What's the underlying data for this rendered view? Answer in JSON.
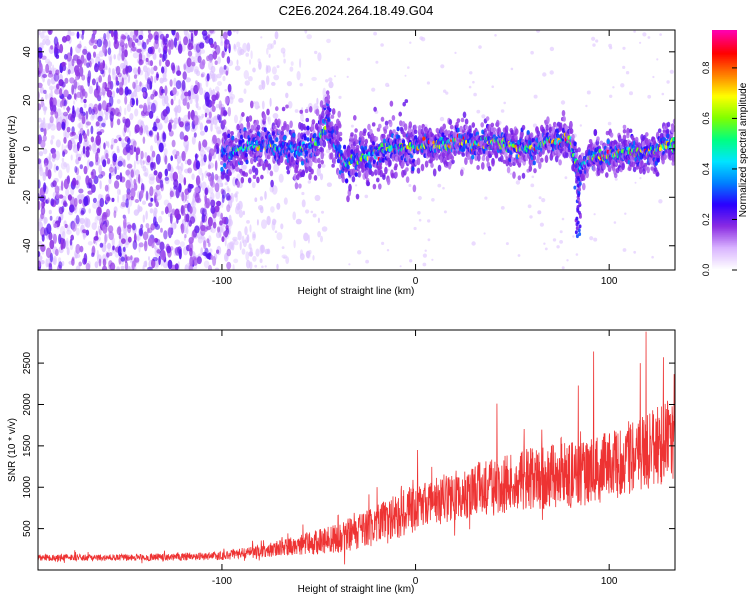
{
  "title": "C2E6.2024.264.18.49.G04",
  "chart_data": [
    {
      "type": "heatmap",
      "title": "C2E6.2024.264.18.49.G04",
      "xlabel": "Height of straight line (km)",
      "ylabel": "Frequency (Hz)",
      "xlim": [
        -195,
        134
      ],
      "ylim": [
        -50,
        49
      ],
      "xticks": [
        -100,
        0,
        100
      ],
      "xtick_labels": [
        "-100",
        "0",
        "100"
      ],
      "yticks": [
        -40,
        -20,
        0,
        20,
        40
      ],
      "ytick_labels": [
        "-40",
        "-20",
        "0",
        "20",
        "40"
      ],
      "colorbar": {
        "label": "Normalized spectral amplitude",
        "range": [
          0,
          0.95
        ],
        "ticks": [
          0.0,
          0.2,
          0.4,
          0.6,
          0.8
        ],
        "tick_labels": [
          "0.0",
          "0.2",
          "0.4",
          "0.6",
          "0.8"
        ],
        "colormap": [
          "#ffffff",
          "#d9b3ff",
          "#8a2be2",
          "#2a00ff",
          "#0080ff",
          "#00e5ff",
          "#00ff80",
          "#80ff00",
          "#ffff00",
          "#ff8000",
          "#ff0000",
          "#ff00aa"
        ]
      },
      "ridge": {
        "description_points_x": [
          -100,
          -90,
          -80,
          -70,
          -60,
          -50,
          -45,
          -40,
          -35,
          -30,
          -20,
          -10,
          0,
          10,
          20,
          30,
          40,
          50,
          60,
          70,
          80,
          84,
          90,
          100,
          110,
          120,
          130
        ],
        "frequency_hz": [
          -3,
          0,
          2,
          1,
          -1,
          3,
          12,
          -3,
          -6,
          -4,
          -2,
          1,
          1,
          2,
          3,
          2,
          3,
          1,
          0,
          3,
          4,
          -10,
          -2,
          -3,
          -1,
          -2,
          2
        ],
        "amplitude": [
          0.3,
          0.4,
          0.4,
          0.35,
          0.3,
          0.45,
          0.5,
          0.35,
          0.4,
          0.4,
          0.45,
          0.55,
          0.6,
          0.65,
          0.6,
          0.55,
          0.5,
          0.6,
          0.6,
          0.55,
          0.65,
          0.4,
          0.55,
          0.6,
          0.55,
          0.7,
          0.65
        ]
      },
      "noise_region_x": [
        -195,
        -100
      ],
      "grid": false
    },
    {
      "type": "line",
      "xlabel": "Height of straight line (km)",
      "ylabel": "SNR (10 * v/v)",
      "xlim": [
        -195,
        134
      ],
      "ylim": [
        0,
        2900
      ],
      "xticks": [
        -100,
        0,
        100
      ],
      "xtick_labels": [
        "-100",
        "0",
        "100"
      ],
      "yticks": [
        500,
        1000,
        1500,
        2000,
        2500
      ],
      "ytick_labels": [
        "500",
        "1000",
        "1500",
        "2000",
        "2500"
      ],
      "color": "#ee3333",
      "envelope_x": [
        -195,
        -150,
        -100,
        -80,
        -60,
        -40,
        -20,
        0,
        20,
        40,
        60,
        80,
        100,
        120,
        134
      ],
      "envelope_mean": [
        150,
        150,
        170,
        230,
        300,
        380,
        550,
        750,
        900,
        1000,
        1100,
        1150,
        1250,
        1450,
        1600
      ],
      "envelope_spread": [
        40,
        40,
        50,
        80,
        120,
        180,
        250,
        300,
        320,
        350,
        380,
        400,
        420,
        480,
        500
      ],
      "peaks": [
        {
          "x": -40,
          "y": 660
        },
        {
          "x": 1,
          "y": 1450
        },
        {
          "x": 42,
          "y": 2010
        },
        {
          "x": 84,
          "y": 2230
        },
        {
          "x": 92,
          "y": 2640
        },
        {
          "x": 116,
          "y": 2500
        },
        {
          "x": 119,
          "y": 2880
        },
        {
          "x": 128,
          "y": 2570
        }
      ],
      "grid": false
    }
  ]
}
